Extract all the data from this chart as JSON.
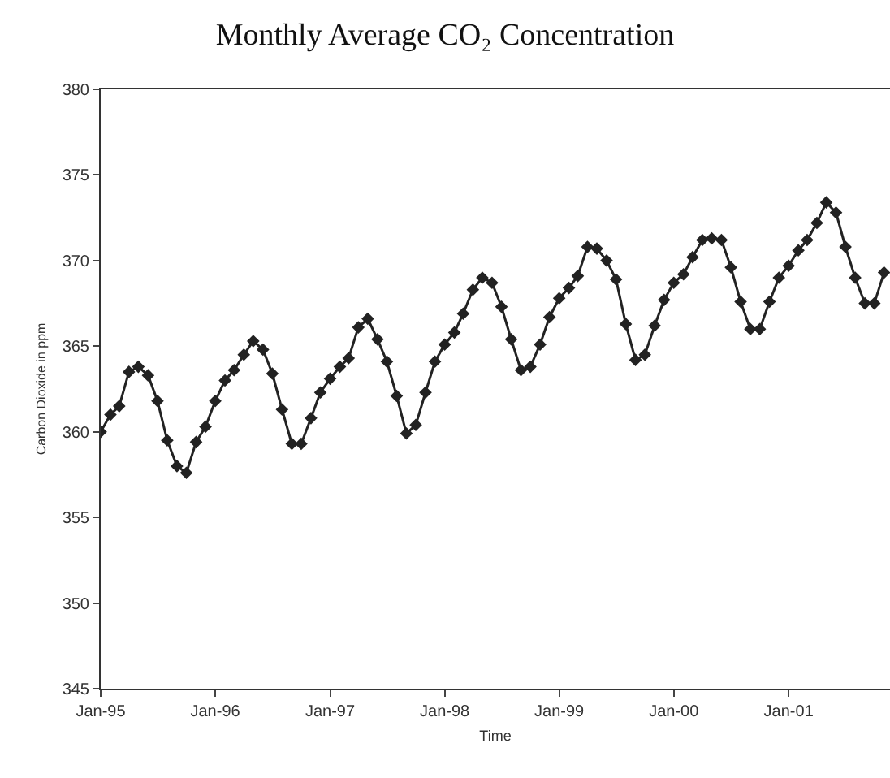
{
  "chart_data": {
    "type": "line",
    "title": "Monthly Average CO₂ Concentration",
    "xlabel": "Time",
    "ylabel": "Carbon Dioxide in ppm",
    "x": [
      "1995-01",
      "1995-02",
      "1995-03",
      "1995-04",
      "1995-05",
      "1995-06",
      "1995-07",
      "1995-08",
      "1995-09",
      "1995-10",
      "1995-11",
      "1995-12",
      "1996-01",
      "1996-02",
      "1996-03",
      "1996-04",
      "1996-05",
      "1996-06",
      "1996-07",
      "1996-08",
      "1996-09",
      "1996-10",
      "1996-11",
      "1996-12",
      "1997-01",
      "1997-02",
      "1997-03",
      "1997-04",
      "1997-05",
      "1997-06",
      "1997-07",
      "1997-08",
      "1997-09",
      "1997-10",
      "1997-11",
      "1997-12",
      "1998-01",
      "1998-02",
      "1998-03",
      "1998-04",
      "1998-05",
      "1998-06",
      "1998-07",
      "1998-08",
      "1998-09",
      "1998-10",
      "1998-11",
      "1998-12",
      "1999-01",
      "1999-02",
      "1999-03",
      "1999-04",
      "1999-05",
      "1999-06",
      "1999-07",
      "1999-08",
      "1999-09",
      "1999-10",
      "1999-11",
      "1999-12",
      "2000-01",
      "2000-02",
      "2000-03",
      "2000-04",
      "2000-05",
      "2000-06",
      "2000-07",
      "2000-08",
      "2000-09",
      "2000-10",
      "2000-11",
      "2000-12",
      "2001-01",
      "2001-02",
      "2001-03",
      "2001-04",
      "2001-05",
      "2001-06",
      "2001-07",
      "2001-08",
      "2001-09",
      "2001-10",
      "2001-11"
    ],
    "series": [
      {
        "color": "#222222",
        "values": [
          360.0,
          361.0,
          361.5,
          363.5,
          363.8,
          363.3,
          361.8,
          359.5,
          358.0,
          357.6,
          359.4,
          360.3,
          361.8,
          363.0,
          363.6,
          364.5,
          365.3,
          364.8,
          363.4,
          361.3,
          359.3,
          359.3,
          360.8,
          362.3,
          363.1,
          363.8,
          364.3,
          366.1,
          366.6,
          365.4,
          364.1,
          362.1,
          359.9,
          360.4,
          362.3,
          364.1,
          365.1,
          365.8,
          366.9,
          368.3,
          369.0,
          368.7,
          367.3,
          365.4,
          363.6,
          363.8,
          365.1,
          366.7,
          367.8,
          368.4,
          369.1,
          370.8,
          370.7,
          370.0,
          368.9,
          366.3,
          364.2,
          364.5,
          366.2,
          367.7,
          368.7,
          369.2,
          370.2,
          371.2,
          371.3,
          371.2,
          369.6,
          367.6,
          366.0,
          366.0,
          367.6,
          369.0,
          369.7,
          370.6,
          371.2,
          372.2,
          373.4,
          372.8,
          370.8,
          369.0,
          367.5,
          367.5,
          369.3
        ]
      }
    ],
    "xlim": [
      "1995-01",
      "2001-11-20"
    ],
    "xticks": [
      {
        "value": "1995-01",
        "label": "Jan-95"
      },
      {
        "value": "1996-01",
        "label": "Jan-96"
      },
      {
        "value": "1997-01",
        "label": "Jan-97"
      },
      {
        "value": "1998-01",
        "label": "Jan-98"
      },
      {
        "value": "1999-01",
        "label": "Jan-99"
      },
      {
        "value": "2000-01",
        "label": "Jan-00"
      },
      {
        "value": "2001-01",
        "label": "Jan-01"
      }
    ],
    "ylim": [
      345,
      380
    ],
    "yticks": [
      345,
      350,
      355,
      360,
      365,
      370,
      375,
      380
    ],
    "marker": "diamond",
    "line_style": "solid"
  }
}
